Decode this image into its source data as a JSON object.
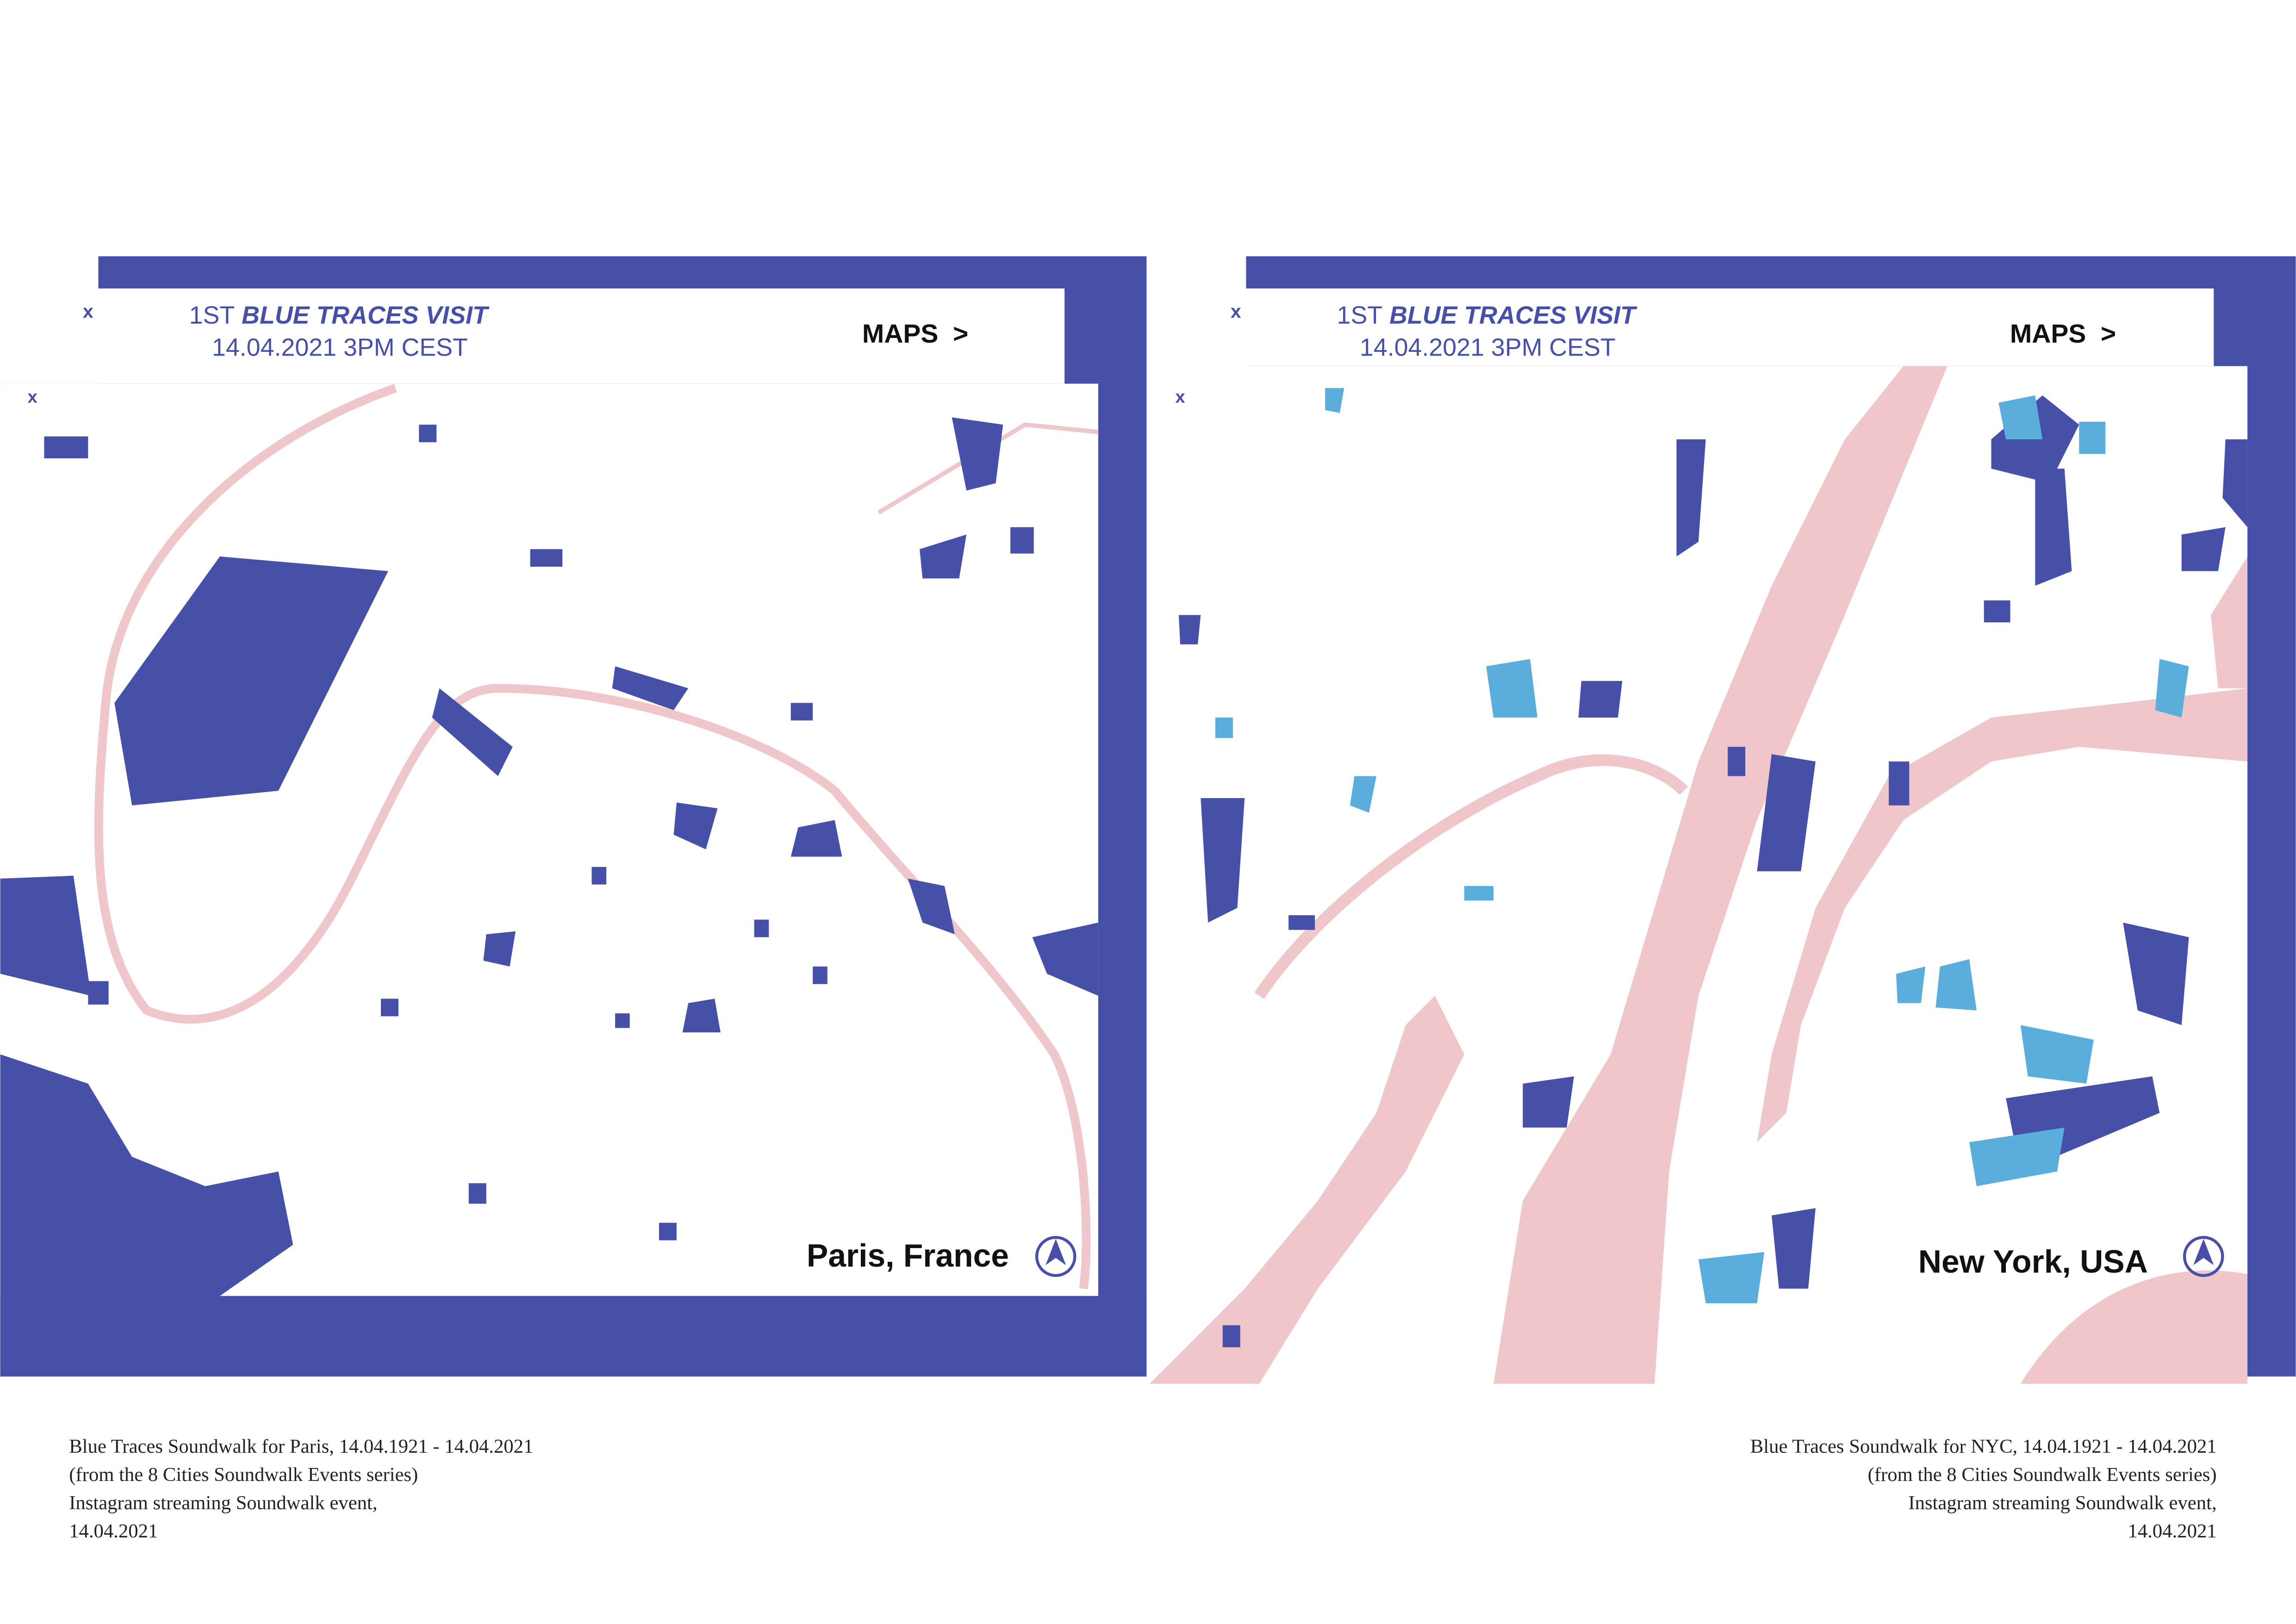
{
  "panels": [
    {
      "close": "x",
      "map_close": "x",
      "title_prefix": "1ST",
      "title_emphasis": "BLUE TRACES VISIT",
      "datetime": "14.04.2021 3PM CEST",
      "maps_link": "MAPS  >",
      "location": "Paris, France",
      "caption": [
        "Blue Traces Soundwalk for Paris, 14.04.1921 - 14.04.2021",
        "(from the 8 Cities Soundwalk Events series)",
        "Instagram streaming Soundwalk event,",
        "14.04.2021"
      ]
    },
    {
      "close": "x",
      "map_close": "x",
      "title_prefix": "1ST",
      "title_emphasis": "BLUE TRACES VISIT",
      "datetime": "14.04.2021 3PM CEST",
      "maps_link": "MAPS  >",
      "location": "New York, USA",
      "caption": [
        "Blue Traces Soundwalk for NYC, 14.04.1921 - 14.04.2021",
        "(from the 8 Cities Soundwalk Events series)",
        "Instagram streaming Soundwalk event,",
        "14.04.2021"
      ]
    }
  ]
}
